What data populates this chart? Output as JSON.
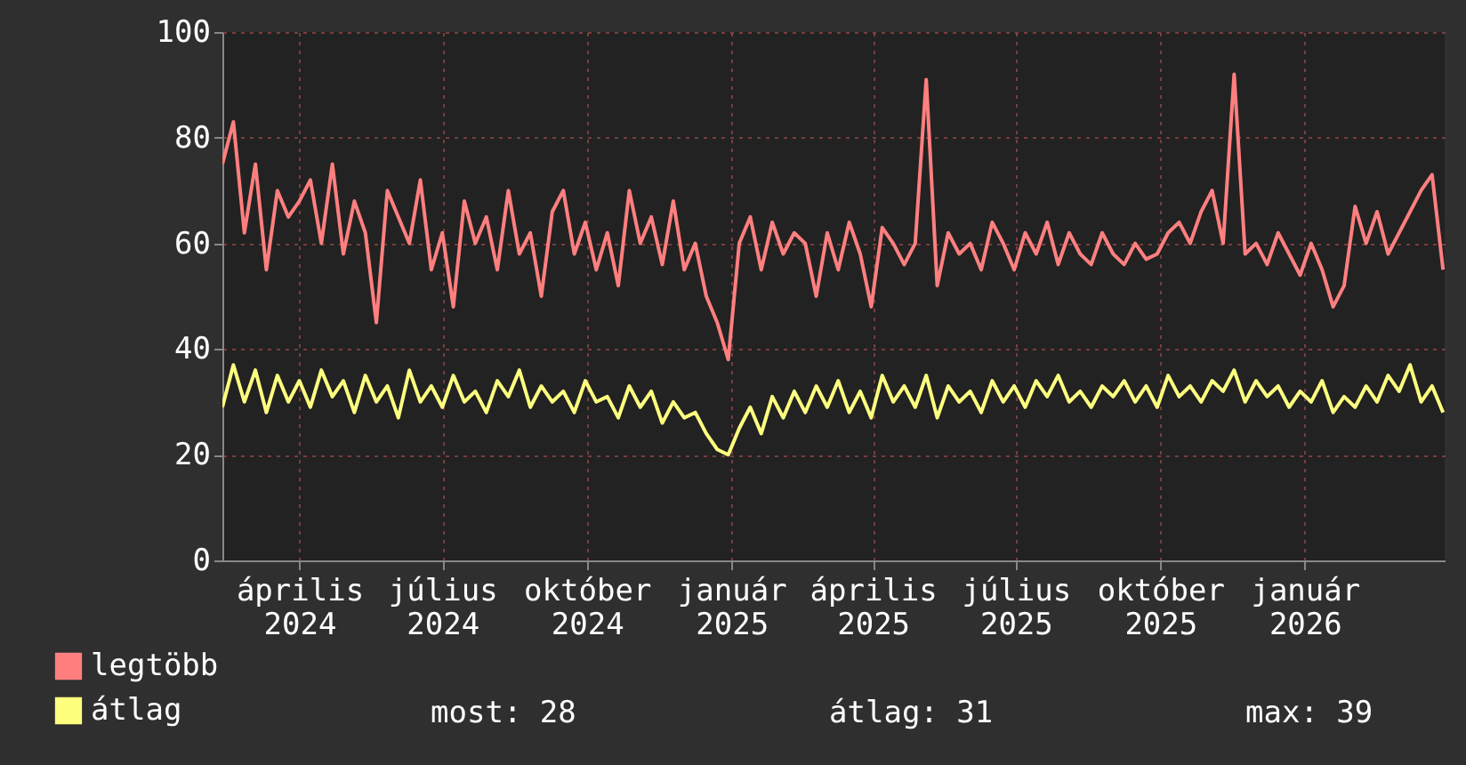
{
  "chart_data": {
    "type": "line",
    "x": [
      "2024-02-12",
      "2024-02-19",
      "2024-02-26",
      "2024-03-04",
      "2024-03-11",
      "2024-03-18",
      "2024-03-25",
      "2024-04-01",
      "2024-04-08",
      "2024-04-15",
      "2024-04-22",
      "2024-04-29",
      "2024-05-06",
      "2024-05-13",
      "2024-05-20",
      "2024-05-27",
      "2024-06-03",
      "2024-06-10",
      "2024-06-17",
      "2024-06-24",
      "2024-07-01",
      "2024-07-08",
      "2024-07-15",
      "2024-07-22",
      "2024-07-29",
      "2024-08-05",
      "2024-08-12",
      "2024-08-19",
      "2024-08-26",
      "2024-09-02",
      "2024-09-09",
      "2024-09-16",
      "2024-09-23",
      "2024-09-30",
      "2024-10-07",
      "2024-10-14",
      "2024-10-21",
      "2024-10-28",
      "2024-11-04",
      "2024-11-11",
      "2024-11-18",
      "2024-11-25",
      "2024-12-02",
      "2024-12-09",
      "2024-12-16",
      "2024-12-23",
      "2024-12-30",
      "2025-01-06",
      "2025-01-13",
      "2025-01-20",
      "2025-01-27",
      "2025-02-03",
      "2025-02-10",
      "2025-02-17",
      "2025-02-24",
      "2025-03-03",
      "2025-03-10",
      "2025-03-17",
      "2025-03-24",
      "2025-03-31",
      "2025-04-07",
      "2025-04-14",
      "2025-04-21",
      "2025-04-28",
      "2025-05-05",
      "2025-05-12",
      "2025-05-19",
      "2025-05-26",
      "2025-06-02",
      "2025-06-09",
      "2025-06-16",
      "2025-06-23",
      "2025-06-30",
      "2025-07-07",
      "2025-07-14",
      "2025-07-21",
      "2025-07-28",
      "2025-08-04",
      "2025-08-11",
      "2025-08-18",
      "2025-08-25",
      "2025-09-01",
      "2025-09-08",
      "2025-09-15",
      "2025-09-22",
      "2025-09-29",
      "2025-10-06",
      "2025-10-13",
      "2025-10-20",
      "2025-10-27",
      "2025-11-03",
      "2025-11-10",
      "2025-11-17",
      "2025-11-24",
      "2025-12-01",
      "2025-12-08",
      "2025-12-15",
      "2025-12-22",
      "2025-12-29",
      "2026-01-05",
      "2026-01-12",
      "2026-01-19",
      "2026-01-26",
      "2026-02-02",
      "2026-02-09",
      "2026-02-16",
      "2026-02-23",
      "2026-03-02",
      "2026-03-09",
      "2026-03-16",
      "2026-03-23",
      "2026-03-30"
    ],
    "xlim": [
      "2024-02-12",
      "2026-03-31"
    ],
    "xticks": [
      {
        "value": "2024-04-01",
        "label": "április 2024"
      },
      {
        "value": "2024-07-01",
        "label": "július 2024"
      },
      {
        "value": "2024-10-01",
        "label": "október 2024"
      },
      {
        "value": "2025-01-01",
        "label": "január 2025"
      },
      {
        "value": "2025-04-01",
        "label": "április 2025"
      },
      {
        "value": "2025-07-01",
        "label": "július 2025"
      },
      {
        "value": "2025-10-01",
        "label": "október 2025"
      },
      {
        "value": "2026-01-01",
        "label": "január 2026"
      }
    ],
    "ylim": [
      0,
      100
    ],
    "yticks": [
      0,
      20,
      40,
      60,
      80,
      100
    ],
    "grid": true,
    "legend": "bottom",
    "series": [
      {
        "name": "legtöbb",
        "color": "#ff7f7f",
        "values": [
          75,
          83,
          62,
          75,
          55,
          70,
          65,
          68,
          72,
          60,
          75,
          58,
          68,
          62,
          45,
          70,
          65,
          60,
          72,
          55,
          62,
          48,
          68,
          60,
          65,
          55,
          70,
          58,
          62,
          50,
          66,
          70,
          58,
          64,
          55,
          62,
          52,
          70,
          60,
          65,
          56,
          68,
          55,
          60,
          50,
          45,
          38,
          60,
          65,
          55,
          64,
          58,
          62,
          60,
          50,
          62,
          55,
          64,
          58,
          48,
          63,
          60,
          56,
          60,
          91,
          52,
          62,
          58,
          60,
          55,
          64,
          60,
          55,
          62,
          58,
          64,
          56,
          62,
          58,
          56,
          62,
          58,
          56,
          60,
          57,
          58,
          62,
          64,
          60,
          66,
          70,
          60,
          92,
          58,
          60,
          56,
          62,
          58,
          54,
          60,
          55,
          48,
          52,
          67,
          60,
          66,
          58,
          62,
          66,
          70,
          73,
          55
        ]
      },
      {
        "name": "átlag",
        "color": "#ffff7f",
        "values": [
          29,
          37,
          30,
          36,
          28,
          35,
          30,
          34,
          29,
          36,
          31,
          34,
          28,
          35,
          30,
          33,
          27,
          36,
          30,
          33,
          29,
          35,
          30,
          32,
          28,
          34,
          31,
          36,
          29,
          33,
          30,
          32,
          28,
          34,
          30,
          31,
          27,
          33,
          29,
          32,
          26,
          30,
          27,
          28,
          24,
          21,
          20,
          25,
          29,
          24,
          31,
          27,
          32,
          28,
          33,
          29,
          34,
          28,
          32,
          27,
          35,
          30,
          33,
          29,
          35,
          27,
          33,
          30,
          32,
          28,
          34,
          30,
          33,
          29,
          34,
          31,
          35,
          30,
          32,
          29,
          33,
          31,
          34,
          30,
          33,
          29,
          35,
          31,
          33,
          30,
          34,
          32,
          36,
          30,
          34,
          31,
          33,
          29,
          32,
          30,
          34,
          28,
          31,
          29,
          33,
          30,
          35,
          32,
          37,
          30,
          33,
          28
        ]
      }
    ],
    "annotations": [
      "most: 28",
      "átlag: 31",
      "max: 39"
    ]
  }
}
